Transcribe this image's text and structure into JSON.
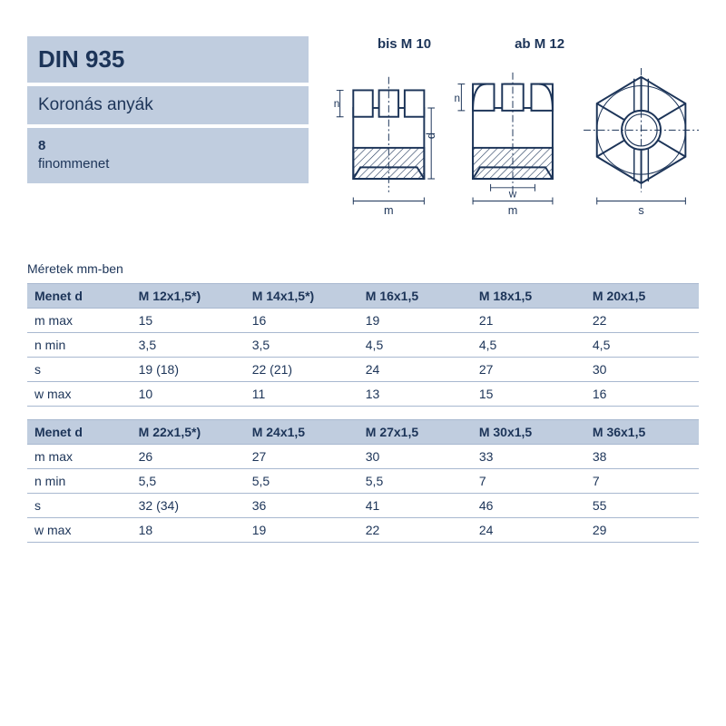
{
  "header": {
    "standard": "DIN 935",
    "name": "Koronás anyák",
    "grade": "8",
    "thread_note": "finommenet"
  },
  "diagram": {
    "label_left": "bis M 10",
    "label_mid": "ab M 12",
    "stroke": "#1c3458",
    "hatch": "#1c3458"
  },
  "tables_caption": "Méretek mm-ben",
  "table1": {
    "header_label": "Menet d",
    "columns": [
      "M 12x1,5*)",
      "M 14x1,5*)",
      "M 16x1,5",
      "M 18x1,5",
      "M 20x1,5"
    ],
    "rows": [
      {
        "label": "m max",
        "cells": [
          "15",
          "16",
          "19",
          "21",
          "22"
        ]
      },
      {
        "label": "n min",
        "cells": [
          "3,5",
          "3,5",
          "4,5",
          "4,5",
          "4,5"
        ]
      },
      {
        "label": "s",
        "cells": [
          "19 (18)",
          "22 (21)",
          "24",
          "27",
          "30"
        ]
      },
      {
        "label": "w max",
        "cells": [
          "10",
          "11",
          "13",
          "15",
          "16"
        ]
      }
    ]
  },
  "table2": {
    "header_label": "Menet d",
    "columns": [
      "M 22x1,5*)",
      "M 24x1,5",
      "M 27x1,5",
      "M 30x1,5",
      "M 36x1,5"
    ],
    "rows": [
      {
        "label": "m max",
        "cells": [
          "26",
          "27",
          "30",
          "33",
          "38"
        ]
      },
      {
        "label": "n min",
        "cells": [
          "5,5",
          "5,5",
          "5,5",
          "7",
          "7"
        ]
      },
      {
        "label": "s",
        "cells": [
          "32 (34)",
          "36",
          "41",
          "46",
          "55"
        ]
      },
      {
        "label": "w max",
        "cells": [
          "18",
          "19",
          "22",
          "24",
          "29"
        ]
      }
    ]
  }
}
